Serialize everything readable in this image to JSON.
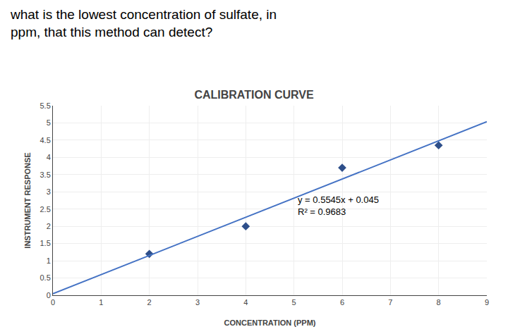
{
  "chart_data": {
    "type": "scatter",
    "title": "CALIBRATION CURVE",
    "subtitle": "what is the lowest concentration of sulfate, in\nppm, that this method can detect?",
    "xlabel": "CONCENTRATION (PPM)",
    "ylabel": "INSTRUMENT RESPONSE",
    "series": [
      {
        "type": "scatter",
        "x": [
          2,
          4,
          6,
          8
        ],
        "values": [
          1.2,
          2.0,
          3.7,
          4.35
        ],
        "color": "#2e4f8a",
        "marker": "diamond"
      },
      {
        "type": "line",
        "x": [
          0,
          9
        ],
        "values": [
          0.045,
          5.0355
        ],
        "color": "#4472c4",
        "line_style": "solid"
      }
    ],
    "annotations": [
      {
        "text": "y = 0.5545x + 0.045\nR² = 0.9683",
        "x": 5.05,
        "y": 2.6
      }
    ],
    "xlim": [
      0,
      9
    ],
    "ylim": [
      0,
      5.5
    ],
    "xticks": [
      0,
      1,
      2,
      3,
      4,
      5,
      6,
      7,
      8,
      9
    ],
    "yticks": [
      0,
      0.5,
      1,
      1.5,
      2,
      2.5,
      3,
      3.5,
      4,
      4.5,
      5,
      5.5
    ],
    "grid": true
  }
}
